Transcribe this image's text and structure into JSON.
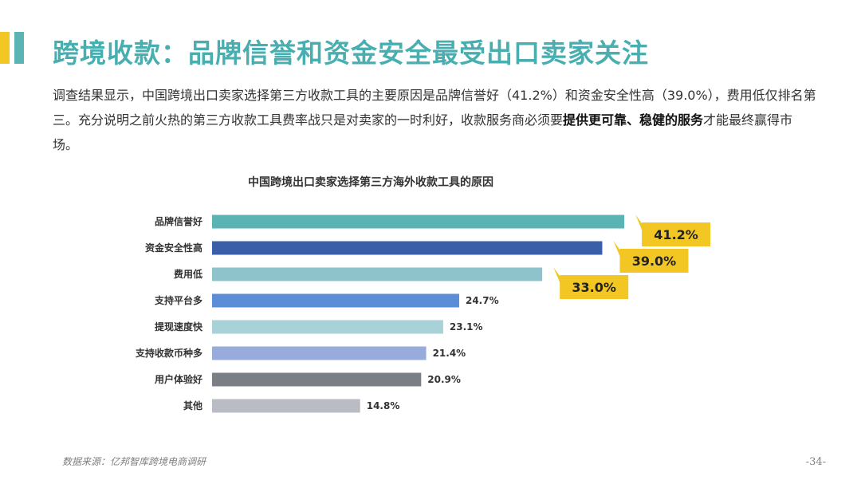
{
  "slide": {
    "title": "跨境收款：品牌信誉和资金安全最受出口卖家关注",
    "body": {
      "part1": "调查结果显示，中国跨境出口卖家选择第三方收款工具的主要原因是品牌信誉好（41.2%）和资金安全性高（39.0%），费用低仅排名第三。充分说明之前火热的第三方收款工具费率战只是对卖家的一时利好，收款服务商必须要",
      "bold": "提供更可靠、稳健的服务",
      "part2": "才能最终赢得市场。"
    },
    "source": "数据来源：亿邦智库跨境电商调研",
    "page_number": "-34-"
  },
  "colors": {
    "title": "#49aeb0",
    "accent_yellow": "#f2c623",
    "accent_teal": "#5ab4b4",
    "callout": "#f2c623"
  },
  "chart_data": {
    "type": "bar",
    "orientation": "horizontal",
    "title": "中国跨境出口卖家选择第三方海外收款工具的原因",
    "categories": [
      "品牌信誉好",
      "资金安全性高",
      "费用低",
      "支持平台多",
      "提现速度快",
      "支持收款币种多",
      "用户体验好",
      "其他"
    ],
    "values": [
      41.2,
      39.0,
      33.0,
      24.7,
      23.1,
      21.4,
      20.9,
      14.8
    ],
    "value_labels": [
      "41.2%",
      "39.0%",
      "33.0%",
      "24.7%",
      "23.1%",
      "21.4%",
      "20.9%",
      "14.8%"
    ],
    "highlighted_top": 3,
    "bar_colors": [
      "#5ab4b4",
      "#3b5ea8",
      "#8fc3cc",
      "#5b8ed6",
      "#a7d2d7",
      "#97acdb",
      "#7a7f85",
      "#b9bcc2"
    ],
    "unit": "%",
    "grid": false,
    "legend": "none"
  }
}
